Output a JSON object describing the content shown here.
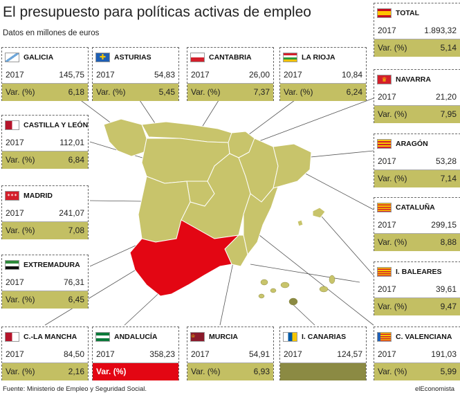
{
  "title": "El presupuesto para políticas activas de empleo",
  "subtitle": "Datos en millones de euros",
  "footer": {
    "source": "Fuente: Ministerio de Empleo y Seguridad Social.",
    "brand": "elEconomista"
  },
  "row_labels": {
    "year": "2017",
    "var": "Var. (%)"
  },
  "colors": {
    "map_fill": "#c8c46b",
    "highlight": "#e30613",
    "card_var": "#c3bf63",
    "canarias_var": "#8b8a43"
  },
  "chart_data": {
    "type": "table",
    "title": "El presupuesto para políticas activas de empleo",
    "subtitle": "Datos en millones de euros",
    "columns": [
      "2017",
      "Var. (%)"
    ],
    "rows": [
      {
        "id": "total",
        "region": "TOTAL",
        "value": "1.893,32",
        "var": "5,14",
        "flag": "spain"
      },
      {
        "id": "galicia",
        "region": "GALICIA",
        "value": "145,75",
        "var": "6,18",
        "flag": "galicia"
      },
      {
        "id": "asturias",
        "region": "ASTURIAS",
        "value": "54,83",
        "var": "5,45",
        "flag": "asturias"
      },
      {
        "id": "cantabria",
        "region": "CANTABRIA",
        "value": "26,00",
        "var": "7,37",
        "flag": "cantabria"
      },
      {
        "id": "larioja",
        "region": "LA RIOJA",
        "value": "10,84",
        "var": "6,24",
        "flag": "larioja"
      },
      {
        "id": "navarra",
        "region": "NAVARRA",
        "value": "21,20",
        "var": "7,95",
        "flag": "navarra"
      },
      {
        "id": "castilla",
        "region": "CASTILLA Y LEÓN",
        "value": "112,01",
        "var": "6,84",
        "flag": "castilla"
      },
      {
        "id": "aragon",
        "region": "ARAGÓN",
        "value": "53,28",
        "var": "7,14",
        "flag": "aragon"
      },
      {
        "id": "madrid",
        "region": "MADRID",
        "value": "241,07",
        "var": "7,08",
        "flag": "madrid"
      },
      {
        "id": "cataluna",
        "region": "CATALUÑA",
        "value": "299,15",
        "var": "8,88",
        "flag": "cataluna"
      },
      {
        "id": "extremadura",
        "region": "EXTREMADURA",
        "value": "76,31",
        "var": "6,45",
        "flag": "extremadura"
      },
      {
        "id": "baleares",
        "region": "I. BALEARES",
        "value": "39,61",
        "var": "9,47",
        "flag": "baleares"
      },
      {
        "id": "clamancha",
        "region": "C.-LA MANCHA",
        "value": "84,50",
        "var": "2,16",
        "flag": "clamancha"
      },
      {
        "id": "andalucia",
        "region": "ANDALUCÍA",
        "value": "358,23",
        "var": "",
        "flag": "andalucia",
        "highlight": true
      },
      {
        "id": "murcia",
        "region": "MURCIA",
        "value": "54,91",
        "var": "6,93",
        "flag": "murcia"
      },
      {
        "id": "canarias",
        "region": "I. CANARIAS",
        "value": "124,57",
        "var": "",
        "flag": "canarias"
      },
      {
        "id": "valenciana",
        "region": "C. VALENCIANA",
        "value": "191,03",
        "var": "5,99",
        "flag": "valenciana"
      }
    ]
  }
}
